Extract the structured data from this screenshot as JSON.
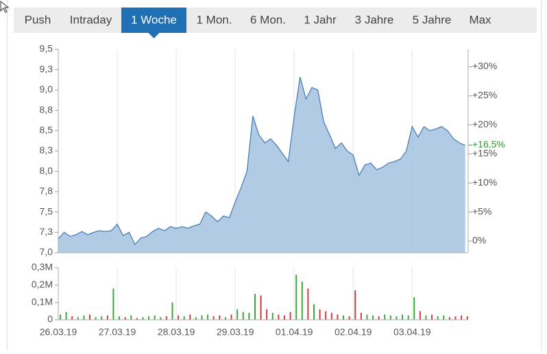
{
  "tabs": [
    "Push",
    "Intraday",
    "1 Woche",
    "1 Mon.",
    "6 Mon.",
    "1 Jahr",
    "3 Jahre",
    "5 Jahre",
    "Max"
  ],
  "active_tab": 2,
  "chart_data": [
    {
      "type": "area",
      "color": "#4a7fb5",
      "fill": "#a9c5e2",
      "grid": true,
      "x": [
        0,
        0.1,
        0.2,
        0.3,
        0.4,
        0.5,
        0.6,
        0.7,
        0.8,
        0.9,
        1,
        1.1,
        1.2,
        1.3,
        1.4,
        1.5,
        1.6,
        1.7,
        1.8,
        1.9,
        2,
        2.1,
        2.2,
        2.3,
        2.4,
        2.5,
        2.6,
        2.7,
        2.8,
        2.9,
        3,
        3.1,
        3.2,
        3.3,
        3.4,
        3.5,
        3.6,
        3.7,
        3.8,
        3.9,
        4,
        4.1,
        4.2,
        4.3,
        4.4,
        4.5,
        4.6,
        4.7,
        4.8,
        4.9,
        5,
        5.1,
        5.2,
        5.3,
        5.4,
        5.5,
        5.6,
        5.7,
        5.8,
        5.9,
        6,
        6.1,
        6.2,
        6.3,
        6.4,
        6.5,
        6.6,
        6.7,
        6.8,
        6.9
      ],
      "values": [
        7.17,
        7.25,
        7.2,
        7.22,
        7.26,
        7.22,
        7.25,
        7.27,
        7.26,
        7.27,
        7.35,
        7.21,
        7.25,
        7.1,
        7.18,
        7.2,
        7.26,
        7.3,
        7.27,
        7.32,
        7.3,
        7.32,
        7.3,
        7.33,
        7.35,
        7.5,
        7.45,
        7.38,
        7.45,
        7.43,
        7.62,
        7.8,
        8.0,
        8.68,
        8.45,
        8.35,
        8.4,
        8.32,
        8.22,
        8.12,
        8.68,
        9.16,
        8.89,
        9.03,
        9.0,
        8.61,
        8.45,
        8.28,
        8.35,
        8.25,
        8.2,
        7.95,
        8.08,
        8.1,
        8.02,
        8.05,
        8.1,
        8.12,
        8.15,
        8.25,
        8.55,
        8.42,
        8.55,
        8.5,
        8.52,
        8.55,
        8.5,
        8.4,
        8.35,
        8.32
      ],
      "xlim": [
        0,
        6.95
      ],
      "xticks": [
        {
          "value": 0,
          "label": "26.03.19"
        },
        {
          "value": 1,
          "label": "27.03.19"
        },
        {
          "value": 2,
          "label": "28.03.19"
        },
        {
          "value": 3,
          "label": "29.03.19"
        },
        {
          "value": 4,
          "label": "01.04.19"
        },
        {
          "value": 5,
          "label": "02.04.19"
        },
        {
          "value": 6,
          "label": "03.04.19"
        }
      ],
      "ylim": [
        7.0,
        9.5
      ],
      "yticks": [
        {
          "value": 7.0,
          "label": "7,0"
        },
        {
          "value": 7.25,
          "label": "7,3"
        },
        {
          "value": 7.5,
          "label": "7,5"
        },
        {
          "value": 7.75,
          "label": "7,8"
        },
        {
          "value": 8.0,
          "label": "8,0"
        },
        {
          "value": 8.25,
          "label": "8,3"
        },
        {
          "value": 8.5,
          "label": "8,5"
        },
        {
          "value": 8.75,
          "label": "8,8"
        },
        {
          "value": 9.0,
          "label": "9,0"
        },
        {
          "value": 9.25,
          "label": "9,3"
        },
        {
          "value": 9.5,
          "label": "9,5"
        }
      ],
      "y2lim": [
        -2,
        33
      ],
      "y2ticks": [
        {
          "value": 0,
          "label": "0%"
        },
        {
          "value": 5,
          "label": "+5%"
        },
        {
          "value": 10,
          "label": "+10%"
        },
        {
          "value": 15,
          "label": "+15%"
        },
        {
          "value": 20,
          "label": "+20%"
        },
        {
          "value": 25,
          "label": "+25%"
        },
        {
          "value": 30,
          "label": "+30%"
        }
      ],
      "current_change": {
        "value": 16.5,
        "label": "+16,5%",
        "color": "#2a9d2a"
      }
    },
    {
      "type": "volume",
      "up_color": "#3aa83a",
      "down_color": "#d23b3b",
      "values": [
        30000,
        45000,
        20000,
        15000,
        25000,
        30000,
        15000,
        20000,
        25000,
        180000,
        20000,
        15000,
        25000,
        10000,
        15000,
        20000,
        25000,
        15000,
        20000,
        100000,
        25000,
        20000,
        30000,
        15000,
        25000,
        30000,
        20000,
        25000,
        15000,
        30000,
        60000,
        45000,
        40000,
        150000,
        140000,
        60000,
        40000,
        30000,
        25000,
        45000,
        260000,
        220000,
        180000,
        90000,
        60000,
        50000,
        40000,
        30000,
        25000,
        20000,
        170000,
        40000,
        30000,
        25000,
        20000,
        30000,
        25000,
        20000,
        30000,
        25000,
        130000,
        50000,
        25000,
        30000,
        20000,
        25000,
        15000,
        20000,
        25000,
        20000
      ],
      "ylim": [
        0,
        300000
      ],
      "yticks": [
        {
          "value": 0,
          "label": "0"
        },
        {
          "value": 100000,
          "label": "0,1M"
        },
        {
          "value": 200000,
          "label": "0,2M"
        },
        {
          "value": 300000,
          "label": "0,3M"
        }
      ]
    }
  ]
}
